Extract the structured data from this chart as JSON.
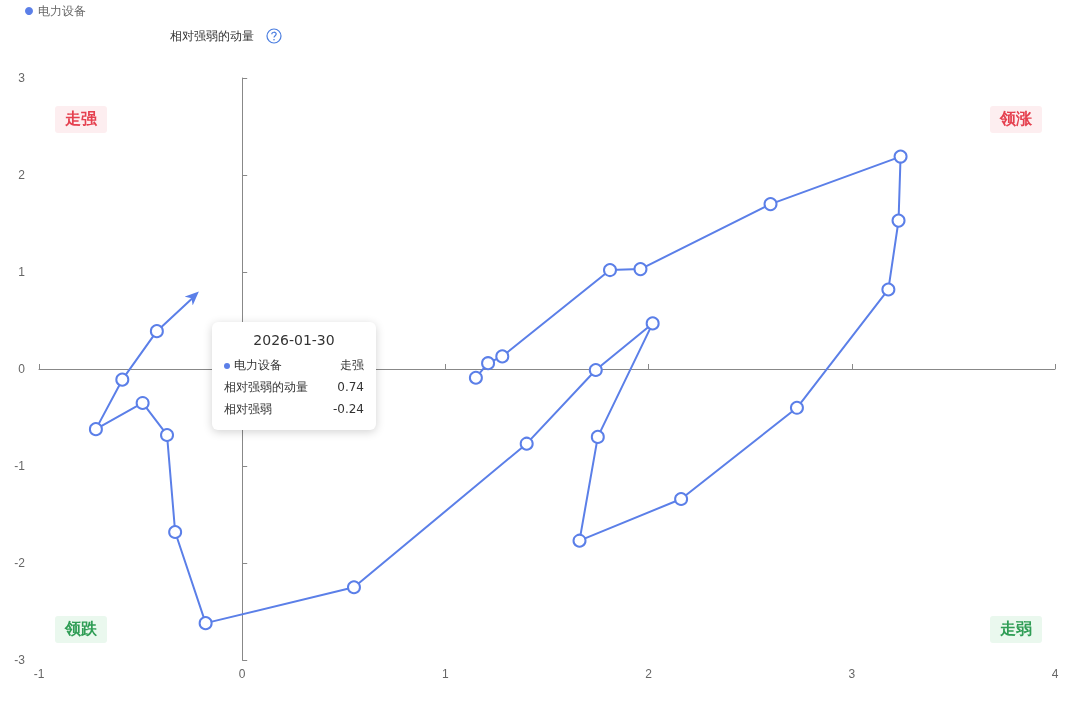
{
  "chart_data": {
    "type": "line",
    "ylabel": "相对强弱的动量",
    "x": [
      1.15,
      1.21,
      1.28,
      1.81,
      1.96,
      2.6,
      3.24,
      3.23,
      3.18,
      2.73,
      2.16,
      1.66,
      1.75,
      2.02,
      1.74,
      1.4,
      0.55,
      -0.18,
      -0.33,
      -0.37,
      -0.49,
      -0.72,
      -0.59,
      -0.42,
      -0.24
    ],
    "series": [
      {
        "name": "电力设备",
        "color": "#5b7fe8",
        "values": [
          -0.09,
          0.06,
          0.13,
          1.02,
          1.03,
          1.7,
          2.19,
          1.53,
          0.82,
          -0.4,
          -1.34,
          -1.77,
          -0.7,
          0.47,
          -0.01,
          -0.77,
          -2.25,
          -2.62,
          -1.68,
          -0.68,
          -0.35,
          -0.62,
          -0.11,
          0.39,
          0.74
        ]
      }
    ],
    "xlim": [
      -1,
      4
    ],
    "xticks": [
      -1,
      0,
      1,
      2,
      3,
      4
    ],
    "ylim": [
      -3,
      3
    ],
    "yticks": [
      -3,
      -2,
      -1,
      0,
      1,
      2,
      3
    ],
    "legend": "top left",
    "marker": "circle",
    "line_style": "solid",
    "annotations": [
      "走强",
      "领涨",
      "领跌",
      "走弱",
      "2026-01-30",
      "电力设备",
      "走强",
      "相对强弱的动量",
      "0.74",
      "相对强弱",
      "-0.24"
    ]
  }
}
